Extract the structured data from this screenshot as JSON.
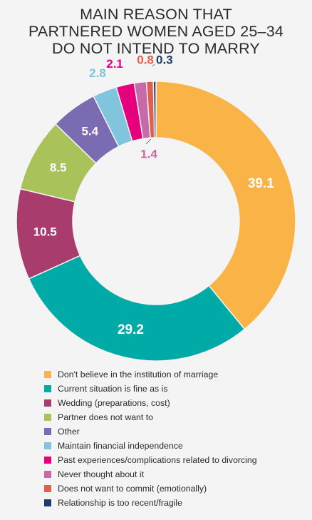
{
  "title_lines": [
    "MAIN REASON THAT",
    "PARTNERED WOMEN AGED 25–34",
    "DO NOT INTEND TO MARRY"
  ],
  "chart_data": {
    "type": "pie",
    "title": "MAIN REASON THAT PARTNERED WOMEN AGED 25–34 DO NOT INTEND TO MARRY",
    "donut": true,
    "legend_position": "bottom",
    "categories": [
      "Don't believe in the institution of marriage",
      "Current situation is fine as is",
      "Wedding (preparations, cost)",
      "Partner does not want to",
      "Other",
      "Maintain financial independence",
      "Past experiences/complications related to divorcing",
      "Never thought about it",
      "Does not want to commit (emotionally)",
      "Relationship is too recent/fragile"
    ],
    "values": [
      39.1,
      29.2,
      10.5,
      8.5,
      5.4,
      2.8,
      2.1,
      1.4,
      0.8,
      0.3
    ],
    "labels": [
      "39.1",
      "29.2",
      "10.5",
      "8.5",
      "5.4",
      "2.8",
      "2.1",
      "1.4",
      "0.8",
      "0.3"
    ],
    "colors": [
      "#f9b347",
      "#00aaa6",
      "#a73c6d",
      "#a9c25a",
      "#7b6bb3",
      "#80c4dd",
      "#e6007e",
      "#c76aa8",
      "#e25f4d",
      "#1f3b67"
    ]
  }
}
